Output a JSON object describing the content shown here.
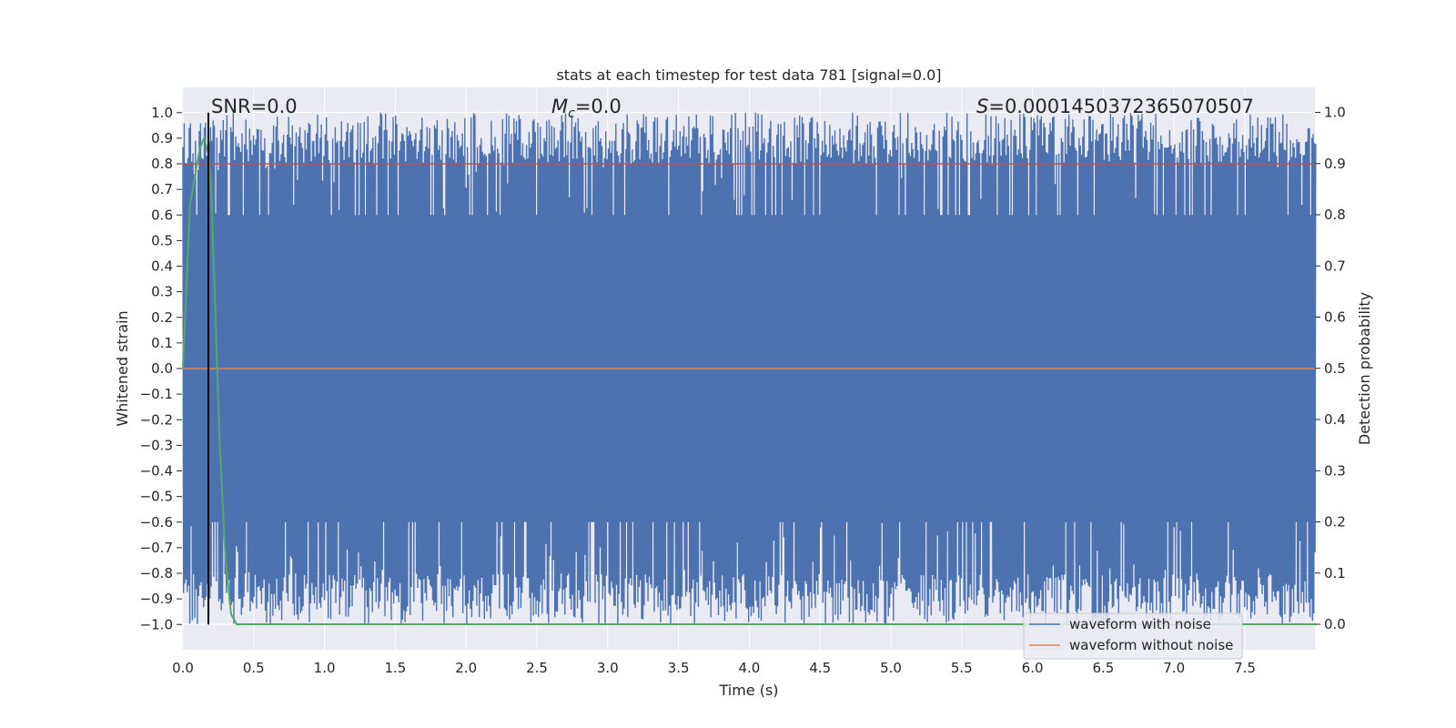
{
  "chart_data": {
    "type": "line",
    "title": "stats at each timestep for test data 781 [signal=0.0]",
    "xlabel": "Time (s)",
    "ylabel_left": "Whitened strain",
    "ylabel_right": "Detection probability",
    "xlim": [
      0.0,
      8.0
    ],
    "ylim_left": [
      -1.1,
      1.1
    ],
    "ylim_right": [
      -0.05,
      1.05
    ],
    "x_ticks": [
      "0.0",
      "0.5",
      "1.0",
      "1.5",
      "2.0",
      "2.5",
      "3.0",
      "3.5",
      "4.0",
      "4.5",
      "5.0",
      "5.5",
      "6.0",
      "6.5",
      "7.0",
      "7.5"
    ],
    "y_left_ticks": [
      "1.0",
      "0.9",
      "0.8",
      "0.7",
      "0.6",
      "0.5",
      "0.4",
      "0.3",
      "0.2",
      "0.1",
      "0.0",
      "−0.1",
      "−0.2",
      "−0.3",
      "−0.4",
      "−0.5",
      "−0.6",
      "−0.7",
      "−0.8",
      "−0.9",
      "−1.0"
    ],
    "y_right_ticks": [
      "1.0",
      "0.9",
      "0.8",
      "0.7",
      "0.6",
      "0.5",
      "0.4",
      "0.3",
      "0.2",
      "0.1",
      "0.0"
    ],
    "grid": true,
    "legend_position": "bottom-right",
    "annotations": {
      "snr": "SNR=0.0",
      "mc_symbol": "M",
      "mc_subscript": "c",
      "mc_value": "=0.0",
      "s_symbol": "S",
      "s_value": "=0.0001450372365070507"
    },
    "series": [
      {
        "name": "waveform with noise",
        "axis": "left",
        "color": "#4c72b0",
        "description_of_shape": "dense noise band spanning approx -1.0 to 1.0"
      },
      {
        "name": "waveform without noise",
        "axis": "left",
        "color": "#dd8452",
        "values_constant": 0.0
      },
      {
        "axis": "right",
        "color": "#55a868",
        "x": [
          0.0,
          0.05,
          0.1,
          0.12,
          0.15,
          0.18,
          0.2,
          0.23,
          0.26,
          0.3,
          0.34,
          0.38,
          0.5,
          1.0,
          2.0,
          4.0,
          6.0,
          8.0
        ],
        "y": [
          0.5,
          0.82,
          0.9,
          0.93,
          0.95,
          0.92,
          0.85,
          0.6,
          0.35,
          0.13,
          0.02,
          0.0,
          0.0,
          0.0,
          0.0,
          0.0,
          0.0,
          0.0
        ]
      }
    ],
    "threshold_line": {
      "axis": "left",
      "value": 0.8,
      "color": "#c44e52"
    },
    "marker_line": {
      "x": 0.18,
      "color": "#000000"
    }
  }
}
